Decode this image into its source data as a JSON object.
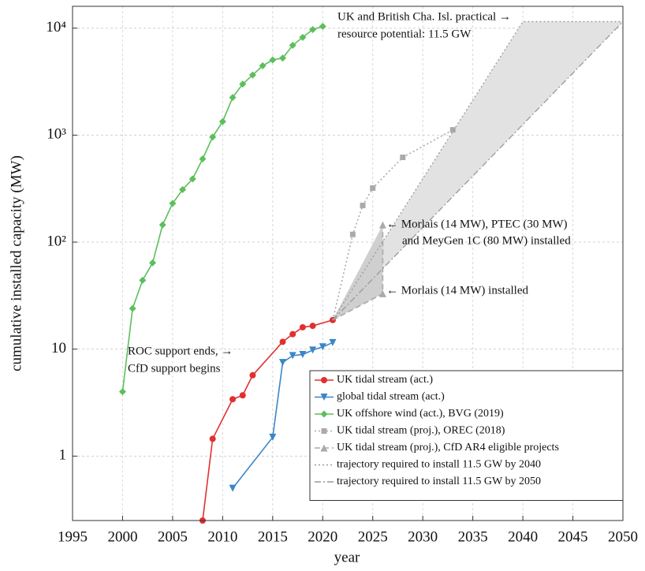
{
  "chart_data": {
    "type": "line",
    "xlabel": "year",
    "ylabel": "cumulative installed capacity (MW)",
    "xlim": [
      1995,
      2050
    ],
    "xticks": [
      1995,
      2000,
      2005,
      2010,
      2015,
      2020,
      2025,
      2030,
      2035,
      2040,
      2045,
      2050
    ],
    "ylim": [
      0.25,
      16000
    ],
    "log_scale_y": true,
    "yticks": [
      1,
      10,
      {
        "value": 100,
        "label": "10²"
      },
      {
        "value": 1000,
        "label": "10³"
      },
      {
        "value": 10000,
        "label": "10⁴"
      }
    ],
    "grid": true,
    "legend": "lower right",
    "series": [
      {
        "name": "UK tidal stream (act.)",
        "color": "#e03030",
        "marker": "circle",
        "dash": "solid",
        "x": [
          2008,
          2009,
          2011,
          2012,
          2013,
          2016,
          2017,
          2018,
          2019,
          2021
        ],
        "values": [
          0.25,
          1.45,
          3.4,
          3.7,
          5.7,
          11.7,
          13.8,
          16,
          16.5,
          18.7
        ]
      },
      {
        "name": "global tidal stream (act.)",
        "color": "#3a86c8",
        "marker": "triangle-down",
        "dash": "solid",
        "x": [
          2011,
          2015,
          2016,
          2017,
          2018,
          2019,
          2020,
          2021
        ],
        "values": [
          0.5,
          1.5,
          7.5,
          8.7,
          8.9,
          9.8,
          10.5,
          11.5
        ]
      },
      {
        "name": "UK offshore wind (act.), BVG (2019)",
        "color": "#5cbf5c",
        "marker": "diamond",
        "dash": "solid",
        "x": [
          2000,
          2001,
          2002,
          2003,
          2004,
          2005,
          2006,
          2007,
          2008,
          2009,
          2010,
          2011,
          2012,
          2013,
          2014,
          2015,
          2016,
          2017,
          2018,
          2019,
          2020
        ],
        "values": [
          4,
          24,
          44,
          64,
          145,
          230,
          310,
          390,
          600,
          960,
          1340,
          2250,
          3000,
          3650,
          4450,
          5050,
          5250,
          6900,
          8200,
          9700,
          10400
        ]
      },
      {
        "name": "UK tidal stream (proj.), OREC (2018)",
        "color": "#aaaaaa",
        "marker": "square",
        "dash": "dotted",
        "x": [
          2021,
          2023,
          2024,
          2025,
          2028,
          2033
        ],
        "values": [
          18.7,
          118,
          220,
          320,
          620,
          1120
        ]
      },
      {
        "name": "UK tidal stream (proj.), CfD AR4 eligible projects",
        "color": "#aaaaaa",
        "marker": "triangle-up",
        "dash": "dashed",
        "x": [
          2021,
          2026,
          2026
        ],
        "values": [
          18.7,
          33,
          145
        ]
      },
      {
        "name": "trajectory required to install 11.5 GW by 2040",
        "color": "#999999",
        "marker": "none",
        "dash": "dotted",
        "x": [
          2021,
          2040,
          2050
        ],
        "values": [
          18.7,
          11500,
          11500
        ]
      },
      {
        "name": "trajectory required to install 11.5 GW by 2050",
        "color": "#999999",
        "marker": "none",
        "dash": "dashdot",
        "x": [
          2021,
          2050
        ],
        "values": [
          18.7,
          11500
        ]
      }
    ],
    "annotations": [
      "UK and British Cha. Isl. practical →",
      "resource potential: 11.5 GW",
      "← Morlais (14 MW), PTEC (30 MW)",
      "and MeyGen 1C (80 MW) installed",
      "← Morlais (14 MW) installed",
      "ROC support ends, →",
      "CfD support begins"
    ]
  }
}
